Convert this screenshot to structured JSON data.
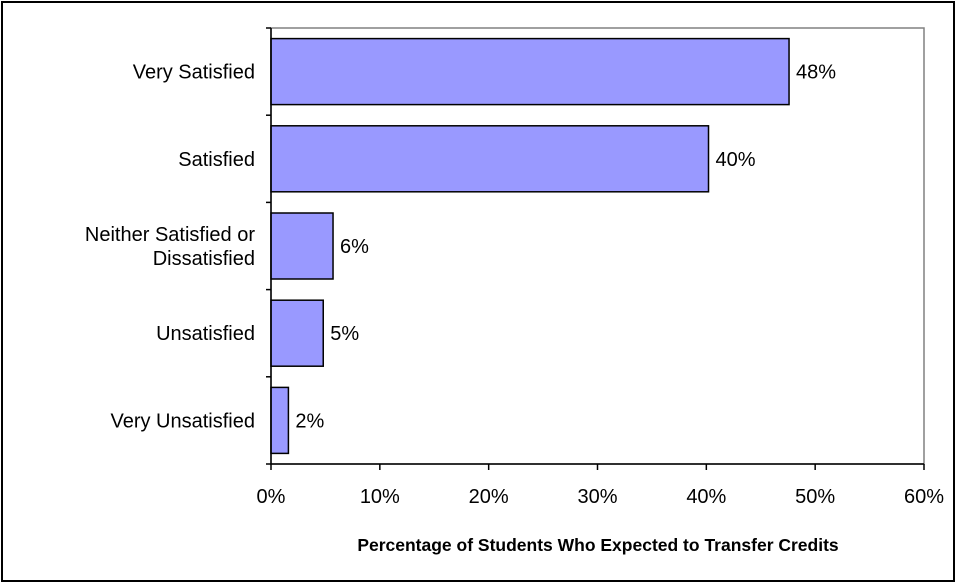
{
  "chart_data": {
    "type": "bar",
    "orientation": "horizontal",
    "categories": [
      [
        "Very Satisfied"
      ],
      [
        "Satisfied"
      ],
      [
        "Neither Satisfied or",
        "Dissatisfied"
      ],
      [
        "Unsatisfied"
      ],
      [
        "Very Unsatisfied"
      ]
    ],
    "values": [
      47.6,
      40.2,
      5.7,
      4.8,
      1.6
    ],
    "data_labels": [
      "48%",
      "40%",
      "6%",
      "5%",
      "2%"
    ],
    "xlabel": "Percentage of Students Who Expected to Transfer Credits",
    "ylabel": "",
    "xlim": [
      0,
      60
    ],
    "x_ticks": [
      0,
      10,
      20,
      30,
      40,
      50,
      60
    ],
    "x_tick_labels": [
      "0%",
      "10%",
      "20%",
      "30%",
      "40%",
      "50%",
      "60%"
    ],
    "grid": false,
    "legend": "none",
    "colors": {
      "bar_fill": "#9999ff",
      "bar_stroke": "#000000",
      "plot_border": "#808080",
      "axis": "#000000"
    }
  }
}
